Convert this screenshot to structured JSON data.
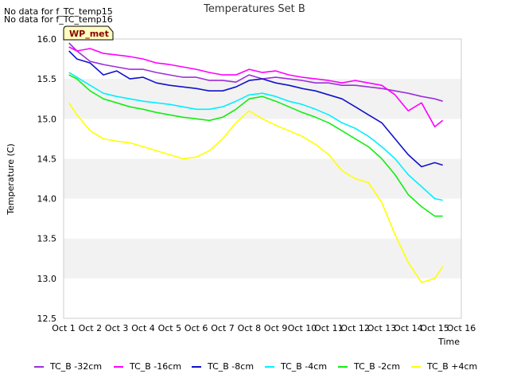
{
  "notes": [
    "No data for f_TC_temp15",
    "No data for f_TC_temp16"
  ],
  "badge": "WP_met",
  "chart_data": {
    "type": "line",
    "title": "Temperatures Set B",
    "xlabel": "Time",
    "ylabel": "Temperature (C)",
    "xlim": [
      0,
      15
    ],
    "ylim": [
      12.5,
      16.0
    ],
    "xticks": [
      "Oct 1",
      "Oct 2",
      "Oct 3",
      "Oct 4",
      "Oct 5",
      "Oct 6",
      "Oct 7",
      "Oct 8",
      "Oct 9",
      "Oct 10",
      "Oct 11",
      "Oct 12",
      "Oct 13",
      "Oct 14",
      "Oct 15",
      "Oct 16"
    ],
    "yticks": [
      "12.5",
      "13.0",
      "13.5",
      "14.0",
      "14.5",
      "15.0",
      "15.5",
      "16.0"
    ],
    "grid": "horizontal bands",
    "legend_position": "bottom",
    "x_unit": "days from Oct 1",
    "series": [
      {
        "name": "TC_B -32cm",
        "color": "#9b30d9",
        "x": [
          0.2,
          0.5,
          1.0,
          1.5,
          2.0,
          2.5,
          3.0,
          3.5,
          4.0,
          4.5,
          5.0,
          5.5,
          6.0,
          6.5,
          7.0,
          7.5,
          8.0,
          8.5,
          9.0,
          9.5,
          10.0,
          10.5,
          11.0,
          11.5,
          12.0,
          12.5,
          13.0,
          13.5,
          14.0,
          14.3
        ],
        "values": [
          15.95,
          15.85,
          15.72,
          15.68,
          15.65,
          15.62,
          15.62,
          15.58,
          15.55,
          15.52,
          15.52,
          15.48,
          15.48,
          15.46,
          15.55,
          15.5,
          15.52,
          15.5,
          15.48,
          15.45,
          15.45,
          15.42,
          15.42,
          15.4,
          15.38,
          15.35,
          15.32,
          15.28,
          15.25,
          15.22
        ]
      },
      {
        "name": "TC_B -16cm",
        "color": "#ff00ff",
        "x": [
          0.2,
          0.5,
          1.0,
          1.5,
          2.0,
          2.5,
          3.0,
          3.5,
          4.0,
          4.5,
          5.0,
          5.5,
          6.0,
          6.5,
          7.0,
          7.5,
          8.0,
          8.5,
          9.0,
          9.5,
          10.0,
          10.5,
          11.0,
          11.5,
          12.0,
          12.5,
          13.0,
          13.5,
          14.0,
          14.3
        ],
        "values": [
          15.9,
          15.85,
          15.88,
          15.82,
          15.8,
          15.78,
          15.75,
          15.7,
          15.68,
          15.65,
          15.62,
          15.58,
          15.55,
          15.55,
          15.62,
          15.58,
          15.6,
          15.55,
          15.52,
          15.5,
          15.48,
          15.45,
          15.48,
          15.45,
          15.42,
          15.3,
          15.1,
          15.2,
          14.9,
          14.98
        ]
      },
      {
        "name": "TC_B -8cm",
        "color": "#1111cc",
        "x": [
          0.2,
          0.5,
          1.0,
          1.5,
          2.0,
          2.5,
          3.0,
          3.5,
          4.0,
          4.5,
          5.0,
          5.5,
          6.0,
          6.5,
          7.0,
          7.5,
          8.0,
          8.5,
          9.0,
          9.5,
          10.0,
          10.5,
          11.0,
          11.5,
          12.0,
          12.5,
          13.0,
          13.5,
          14.0,
          14.3
        ],
        "values": [
          15.85,
          15.75,
          15.7,
          15.55,
          15.6,
          15.5,
          15.52,
          15.45,
          15.42,
          15.4,
          15.38,
          15.35,
          15.35,
          15.4,
          15.48,
          15.5,
          15.45,
          15.42,
          15.38,
          15.35,
          15.3,
          15.25,
          15.15,
          15.05,
          14.95,
          14.75,
          14.55,
          14.4,
          14.45,
          14.42
        ]
      },
      {
        "name": "TC_B -4cm",
        "color": "#00f0ff",
        "x": [
          0.2,
          0.5,
          1.0,
          1.5,
          2.0,
          2.5,
          3.0,
          3.5,
          4.0,
          4.5,
          5.0,
          5.5,
          6.0,
          6.5,
          7.0,
          7.5,
          8.0,
          8.5,
          9.0,
          9.5,
          10.0,
          10.5,
          11.0,
          11.5,
          12.0,
          12.5,
          13.0,
          13.5,
          14.0,
          14.3
        ],
        "values": [
          15.58,
          15.52,
          15.42,
          15.32,
          15.28,
          15.25,
          15.22,
          15.2,
          15.18,
          15.15,
          15.12,
          15.12,
          15.15,
          15.22,
          15.3,
          15.32,
          15.28,
          15.22,
          15.18,
          15.12,
          15.05,
          14.95,
          14.88,
          14.78,
          14.65,
          14.5,
          14.3,
          14.15,
          14.0,
          13.98
        ]
      },
      {
        "name": "TC_B -2cm",
        "color": "#11ee11",
        "x": [
          0.2,
          0.5,
          1.0,
          1.5,
          2.0,
          2.5,
          3.0,
          3.5,
          4.0,
          4.5,
          5.0,
          5.5,
          6.0,
          6.5,
          7.0,
          7.5,
          8.0,
          8.5,
          9.0,
          9.5,
          10.0,
          10.5,
          11.0,
          11.5,
          12.0,
          12.5,
          13.0,
          13.5,
          14.0,
          14.3
        ],
        "values": [
          15.55,
          15.5,
          15.35,
          15.25,
          15.2,
          15.15,
          15.12,
          15.08,
          15.05,
          15.02,
          15.0,
          14.98,
          15.02,
          15.12,
          15.25,
          15.28,
          15.22,
          15.15,
          15.08,
          15.02,
          14.95,
          14.85,
          14.75,
          14.65,
          14.5,
          14.3,
          14.05,
          13.9,
          13.78,
          13.78
        ]
      },
      {
        "name": "TC_B +4cm",
        "color": "#ffff00",
        "x": [
          0.2,
          0.5,
          1.0,
          1.5,
          2.0,
          2.5,
          3.0,
          3.5,
          4.0,
          4.5,
          5.0,
          5.5,
          6.0,
          6.5,
          7.0,
          7.5,
          8.0,
          8.5,
          9.0,
          9.5,
          10.0,
          10.5,
          11.0,
          11.5,
          12.0,
          12.5,
          13.0,
          13.5,
          14.0,
          14.3
        ],
        "values": [
          15.2,
          15.05,
          14.85,
          14.75,
          14.72,
          14.7,
          14.65,
          14.6,
          14.55,
          14.5,
          14.52,
          14.6,
          14.75,
          14.95,
          15.1,
          15.0,
          14.92,
          14.85,
          14.78,
          14.68,
          14.55,
          14.35,
          14.25,
          14.2,
          13.95,
          13.55,
          13.2,
          12.95,
          13.0,
          13.15
        ]
      }
    ]
  }
}
